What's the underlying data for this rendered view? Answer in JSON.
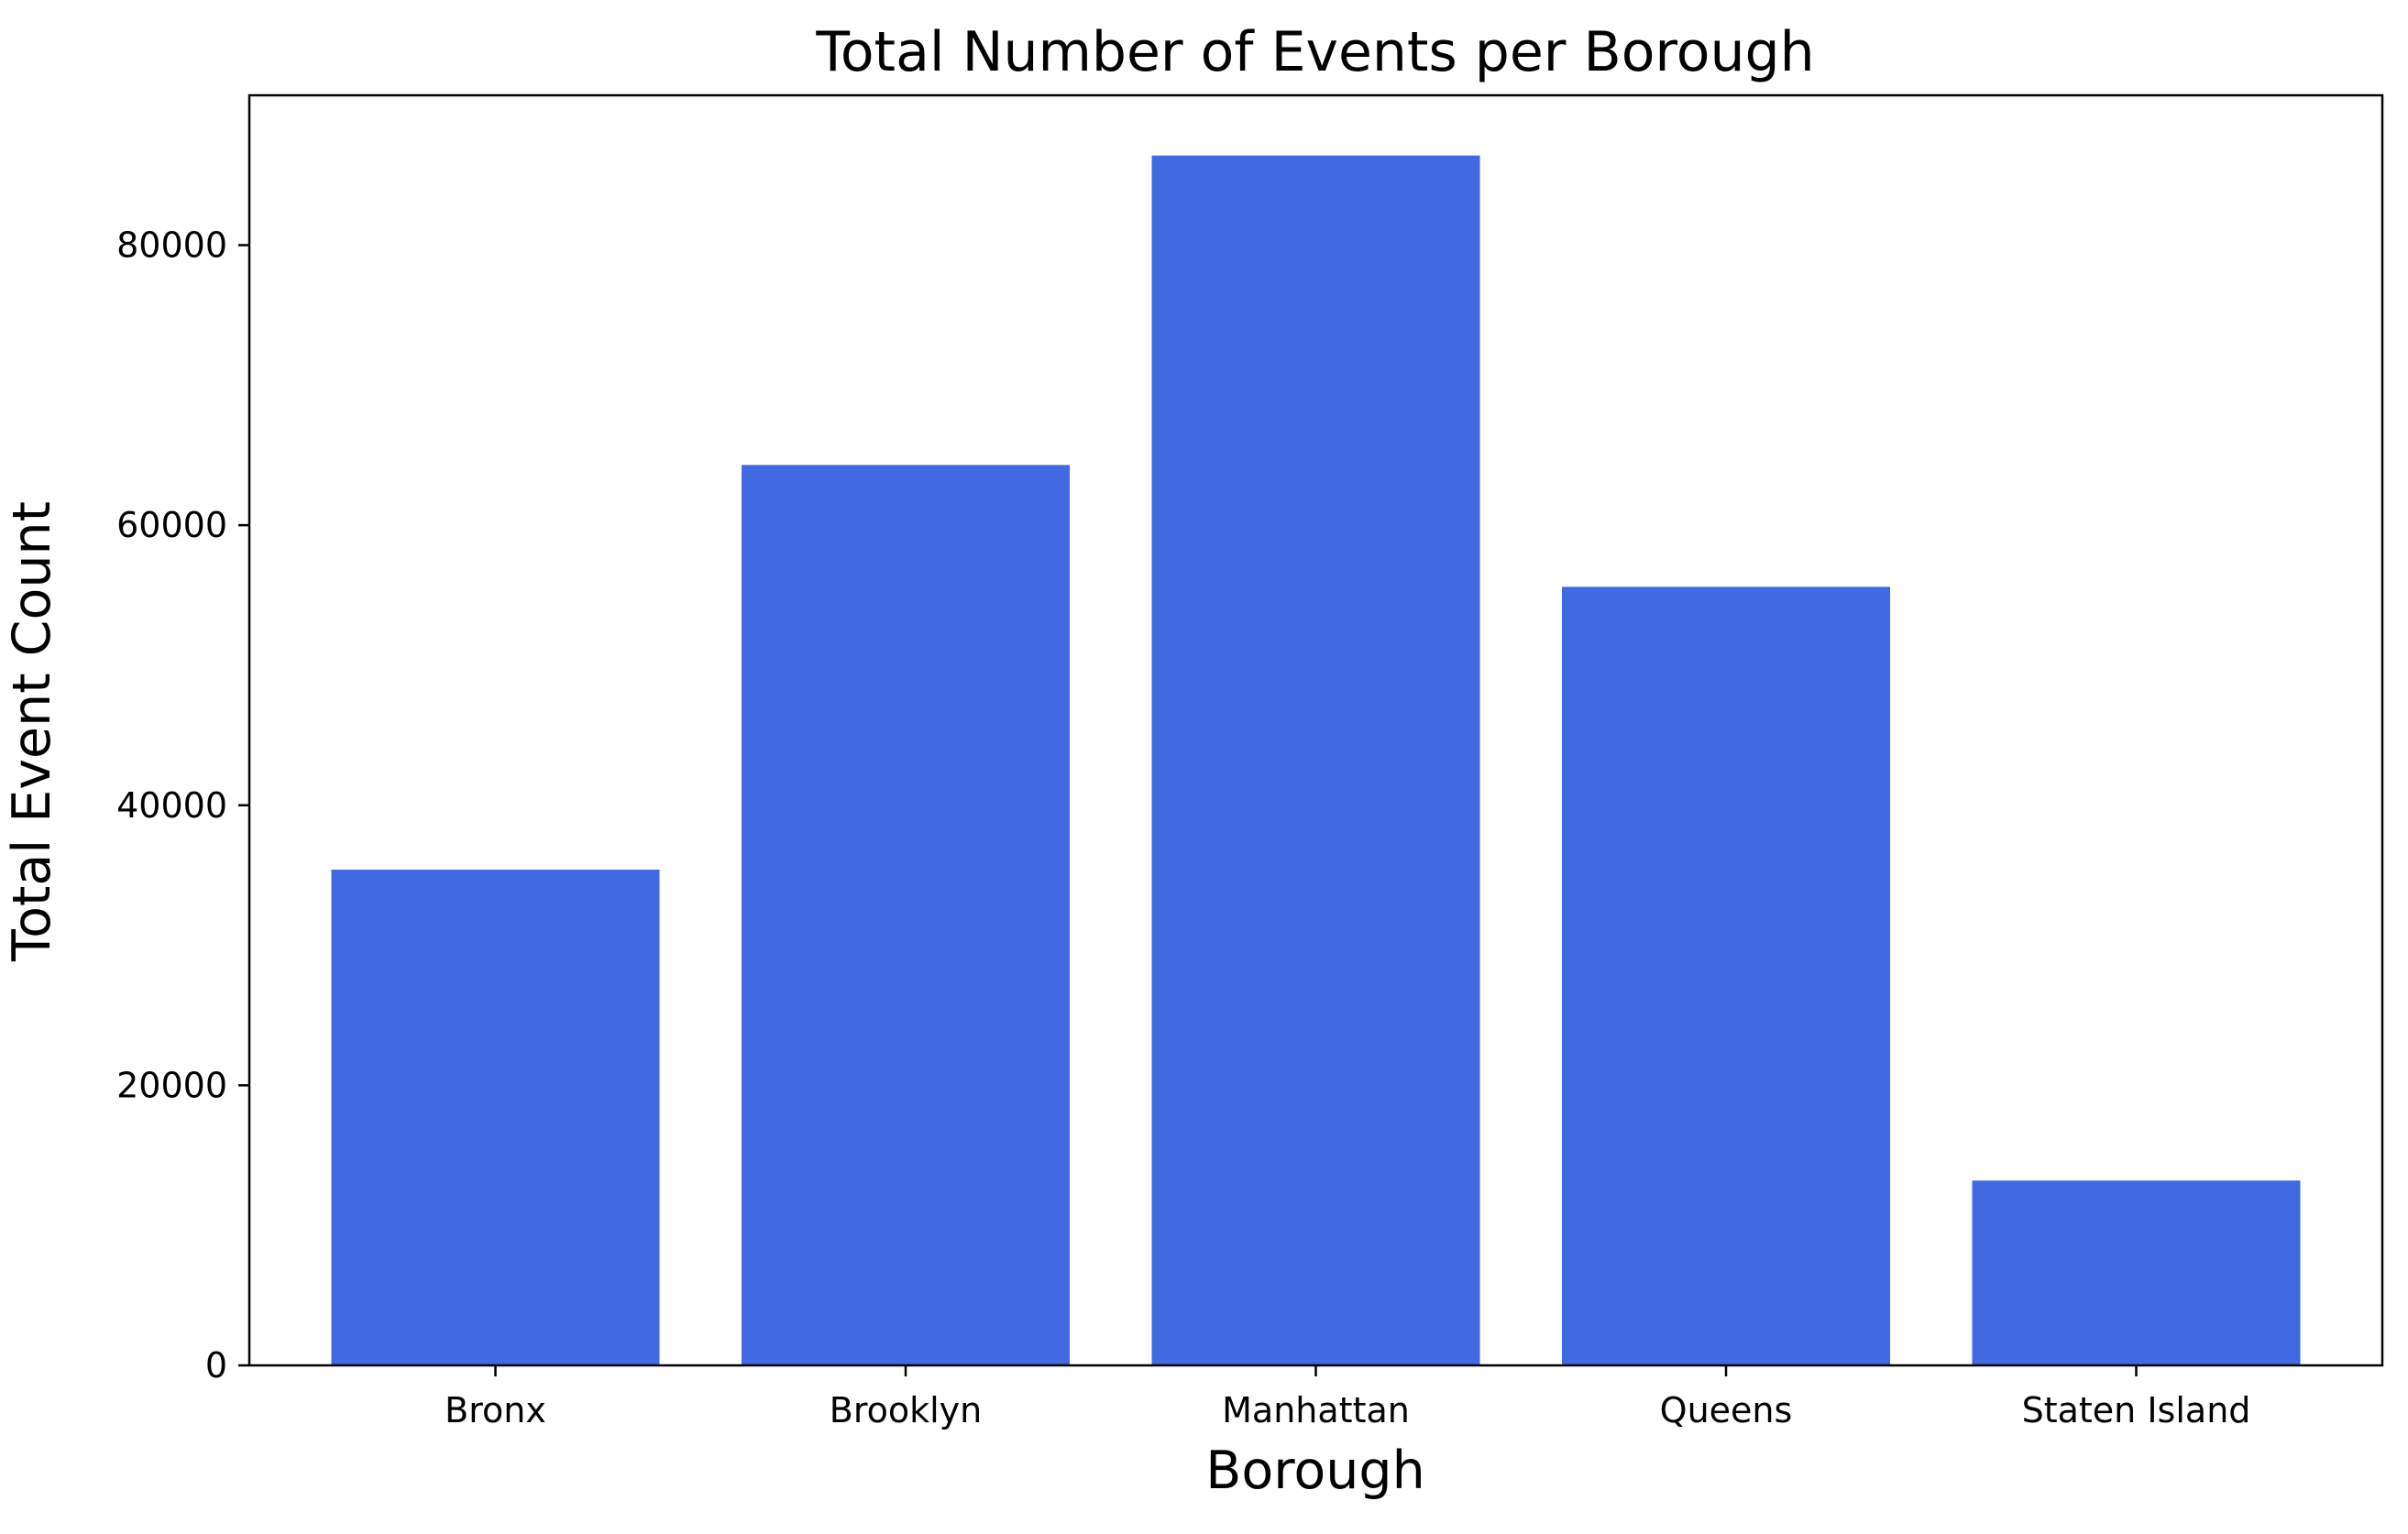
{
  "chart_data": {
    "type": "bar",
    "title": "Total Number of Events per Borough",
    "xlabel": "Borough",
    "ylabel": "Total Event Count",
    "categories": [
      "Bronx",
      "Brooklyn",
      "Manhattan",
      "Queens",
      "Staten Island"
    ],
    "values": [
      35400,
      64300,
      86400,
      55600,
      13200
    ],
    "ylim": [
      0,
      90700
    ],
    "yticks": [
      0,
      20000,
      40000,
      60000,
      80000
    ],
    "ytick_labels": [
      "0",
      "20000",
      "40000",
      "60000",
      "80000"
    ],
    "bar_color": "#4169E1",
    "grid": false,
    "legend": null
  }
}
